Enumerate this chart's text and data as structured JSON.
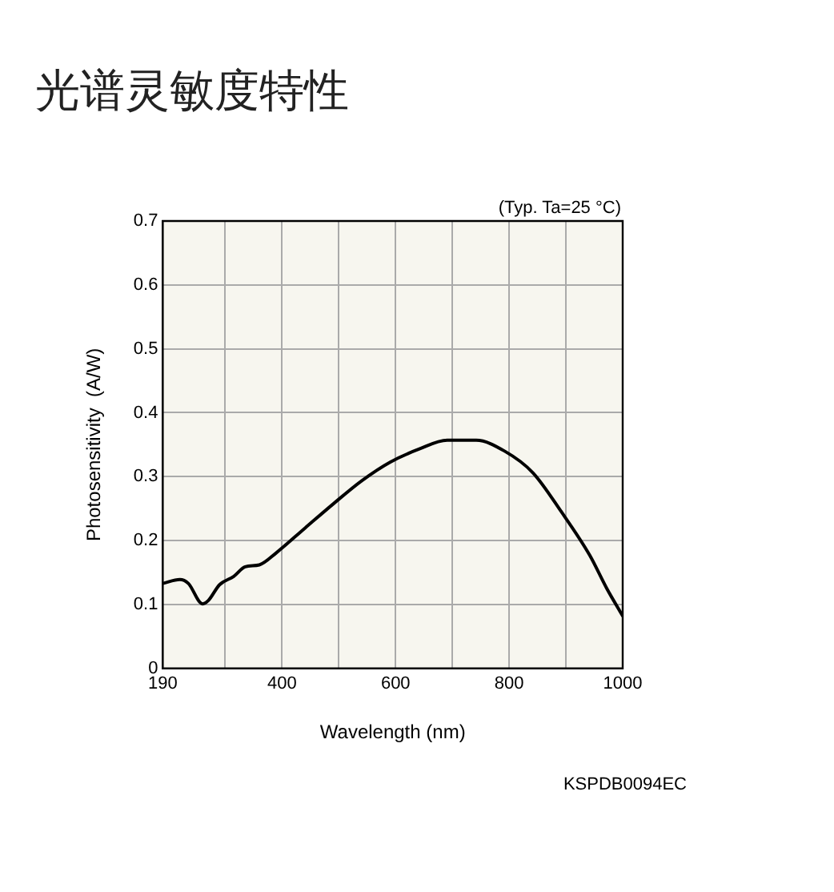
{
  "chart_data": {
    "type": "line",
    "title": "光谱灵敏度特性",
    "xlabel": "Wavelength (nm)",
    "ylabel": "Photosensitivity  (A/W)",
    "annotations": [
      "(Typ. Ta=25 °C)",
      "KSPDB0094EC"
    ],
    "x": [
      190,
      220,
      235,
      260,
      270,
      290,
      315,
      335,
      360,
      390,
      441,
      491,
      541,
      591,
      641,
      691,
      742,
      792,
      842,
      892,
      942,
      972,
      1000
    ],
    "series": [
      {
        "color": "#000000",
        "values": [
          0.133,
          0.139,
          0.133,
          0.101,
          0.106,
          0.131,
          0.144,
          0.159,
          0.162,
          0.181,
          0.22,
          0.258,
          0.294,
          0.323,
          0.343,
          0.357,
          0.357,
          0.34,
          0.306,
          0.245,
          0.177,
          0.125,
          0.082
        ]
      }
    ],
    "xlim": [
      190,
      1000
    ],
    "xticks": [
      190,
      {
        "value": 300,
        "label": null
      },
      400,
      {
        "value": 500,
        "label": null
      },
      600,
      {
        "value": 700,
        "label": null
      },
      800,
      {
        "value": 900,
        "label": null
      },
      1000
    ],
    "ylim": [
      0,
      0.7
    ],
    "yticks": [
      0,
      0.1,
      0.2,
      0.3,
      0.4,
      0.5,
      0.6,
      0.7
    ],
    "grid": true,
    "legend": false,
    "marker": "none",
    "line_style": "solid"
  }
}
